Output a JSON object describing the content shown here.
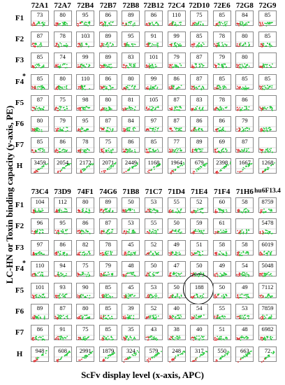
{
  "y_axis_label": "LC-HN or Toxin binding capacity (y-axis, PE)",
  "x_axis_label": "ScFv display level (x-axis, APC)",
  "asterisk": "*",
  "row_labels": [
    "F1",
    "F2",
    "F3",
    "F4",
    "F5",
    "F6",
    "F7",
    "H"
  ],
  "top_panel": {
    "columns": [
      "72A1",
      "72A7",
      "72B4",
      "72B7",
      "72B8",
      "72B12",
      "72C4",
      "72D10",
      "72E6",
      "72G8",
      "72G9"
    ],
    "values": [
      [
        "73",
        "80",
        "95",
        "86",
        "89",
        "86",
        "110",
        "75",
        "85",
        "84",
        "85"
      ],
      [
        "87",
        "78",
        "103",
        "89",
        "95",
        "91",
        "99",
        "85",
        "78",
        "80",
        "85"
      ],
      [
        "85",
        "74",
        "99",
        "89",
        "83",
        "101",
        "79",
        "87",
        "79",
        "80",
        ""
      ],
      [
        "85",
        "80",
        "110",
        "86",
        "80",
        "99",
        "86",
        "87",
        "85",
        "85",
        "85"
      ],
      [
        "87",
        "75",
        "98",
        "80",
        "81",
        "105",
        "87",
        "83",
        "78",
        "86",
        ""
      ],
      [
        "80",
        "79",
        "95",
        "87",
        "84",
        "97",
        "87",
        "86",
        "86",
        "79",
        ""
      ],
      [
        "85",
        "86",
        "78",
        "75",
        "86",
        "85",
        "77",
        "89",
        "69",
        "87",
        ""
      ],
      [
        "3459",
        "2054",
        "2172",
        "2071",
        "2449",
        "1168",
        "1964",
        "679",
        "2398",
        "1667",
        "1268"
      ]
    ]
  },
  "bottom_panel": {
    "columns": [
      "73C4",
      "73D9",
      "74F1",
      "74G6",
      "71B8",
      "71C7",
      "71D4",
      "71E4",
      "71F4",
      "71H6",
      "hu6F13.4"
    ],
    "values": [
      [
        "104",
        "112",
        "80",
        "89",
        "50",
        "53",
        "55",
        "52",
        "60",
        "58",
        "8759"
      ],
      [
        "96",
        "95",
        "86",
        "87",
        "53",
        "55",
        "50",
        "59",
        "61",
        "",
        "5478"
      ],
      [
        "97",
        "86",
        "82",
        "78",
        "45",
        "52",
        "49",
        "51",
        "58",
        "58",
        "6019"
      ],
      [
        "110",
        "94",
        "75",
        "79",
        "48",
        "50",
        "47",
        "50",
        "49",
        "54",
        "5048"
      ],
      [
        "101",
        "93",
        "90",
        "85",
        "45",
        "53",
        "50",
        "188",
        "50",
        "49",
        "7112"
      ],
      [
        "89",
        "87",
        "80",
        "85",
        "39",
        "52",
        "40",
        "54",
        "55",
        "53",
        "7859"
      ],
      [
        "86",
        "91",
        "75",
        "85",
        "35",
        "43",
        "38",
        "40",
        "51",
        "48",
        "6982"
      ],
      [
        "948",
        "608",
        "2991",
        "1879",
        "324",
        "579",
        "248",
        "317",
        "550",
        "663",
        "72"
      ]
    ],
    "highlighted_cell": {
      "row": "F5",
      "column": "71E4"
    }
  },
  "colors": {
    "positive_events": "#22c93a",
    "negative_events": "#e0393a",
    "gate_border": "#888888"
  }
}
